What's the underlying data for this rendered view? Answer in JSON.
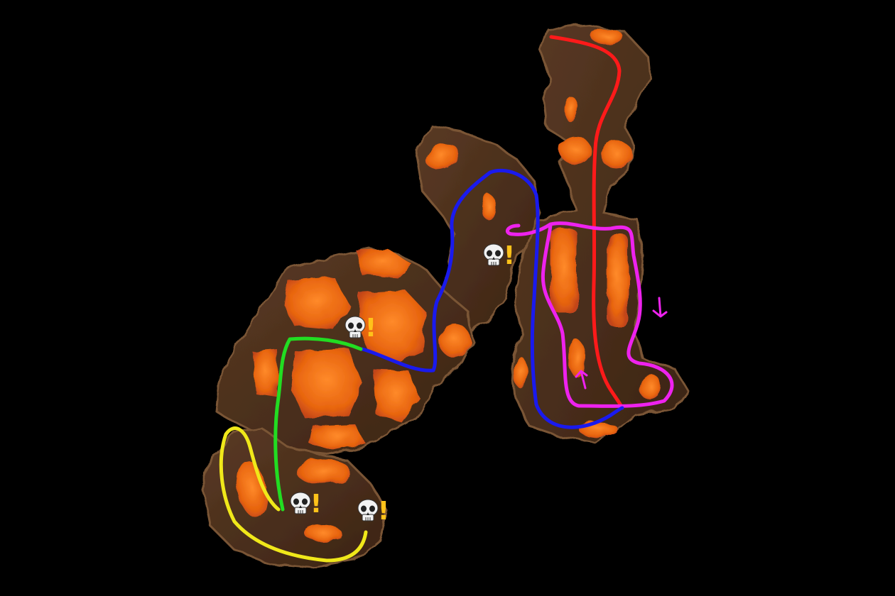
{
  "map": {
    "background_color": "#000000",
    "terrain_colors": {
      "rock": "#4a2e1c",
      "rock_edge": "#6b4a30",
      "lava": "#e8650f",
      "lava_bright": "#ff7a1a",
      "lava_deep": "#c1441a"
    },
    "routes": [
      {
        "id": "red",
        "color": "#ff1a1a"
      },
      {
        "id": "magenta",
        "color": "#ee22ee"
      },
      {
        "id": "blue",
        "color": "#1a1aee"
      },
      {
        "id": "green",
        "color": "#22dd22"
      },
      {
        "id": "yellow",
        "color": "#f0e81a"
      }
    ],
    "direction_arrows": [
      {
        "id": "arrow-down",
        "icon": "arrow-down-icon",
        "color": "#ee22ee"
      },
      {
        "id": "arrow-up",
        "icon": "arrow-up-icon",
        "color": "#ee22ee"
      }
    ],
    "danger_markers": [
      {
        "id": "danger-1",
        "icon": "skull-icon",
        "alert_icon": "exclamation-icon",
        "skull_glyph": "💀",
        "alert_glyph": "!",
        "alert_color": "#ffc21a"
      },
      {
        "id": "danger-2",
        "icon": "skull-icon",
        "alert_icon": "exclamation-icon",
        "skull_glyph": "💀",
        "alert_glyph": "!",
        "alert_color": "#ffc21a"
      },
      {
        "id": "danger-3",
        "icon": "skull-icon",
        "alert_icon": "exclamation-icon",
        "skull_glyph": "💀",
        "alert_glyph": "!",
        "alert_color": "#ffc21a"
      },
      {
        "id": "danger-4",
        "icon": "skull-icon",
        "alert_icon": "exclamation-icon",
        "skull_glyph": "💀",
        "alert_glyph": "!",
        "alert_color": "#ffc21a"
      }
    ]
  }
}
